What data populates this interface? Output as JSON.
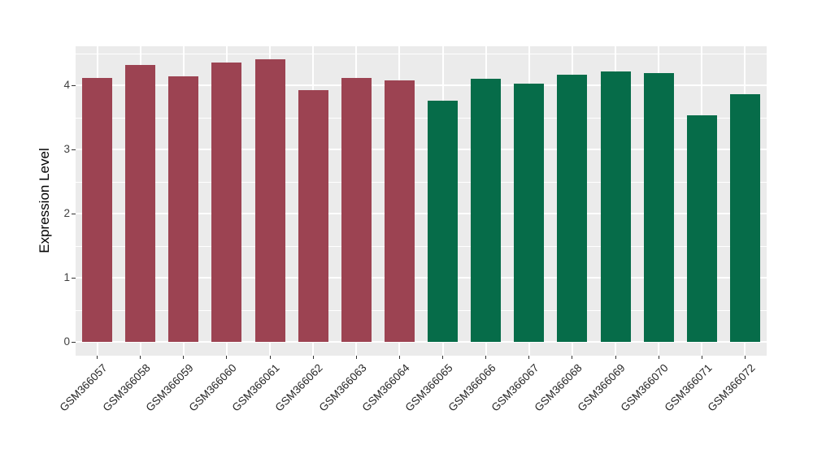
{
  "figure": {
    "background": "#ffffff",
    "panel_background": "#ebebeb",
    "grid_color": "#ffffff",
    "tick_color": "#333333"
  },
  "chart_data": {
    "type": "bar",
    "title": "",
    "xlabel": "",
    "ylabel": "Expression Level",
    "legend_position": "none",
    "grid": true,
    "ylim": [
      0,
      4.61
    ],
    "yticks": [
      0,
      1,
      2,
      3,
      4
    ],
    "yminorticks": [
      0.5,
      1.5,
      2.5,
      3.5,
      4.5
    ],
    "categories": [
      "GSM366057",
      "GSM366058",
      "GSM366059",
      "GSM366060",
      "GSM366061",
      "GSM366062",
      "GSM366063",
      "GSM366064",
      "GSM366065",
      "GSM366066",
      "GSM366067",
      "GSM366068",
      "GSM366069",
      "GSM366070",
      "GSM366071",
      "GSM366072"
    ],
    "values": [
      4.12,
      4.32,
      4.14,
      4.35,
      4.4,
      3.92,
      4.12,
      4.08,
      3.76,
      4.1,
      4.02,
      4.17,
      4.21,
      4.19,
      3.53,
      3.86
    ],
    "bar_colors": [
      "#9C4352",
      "#9C4352",
      "#9C4352",
      "#9C4352",
      "#9C4352",
      "#9C4352",
      "#9C4352",
      "#9C4352",
      "#066C49",
      "#066C49",
      "#066C49",
      "#066C49",
      "#066C49",
      "#066C49",
      "#066C49",
      "#066C49"
    ],
    "group_colors": {
      "left_group": "#9C4352",
      "right_group": "#066C49"
    }
  }
}
